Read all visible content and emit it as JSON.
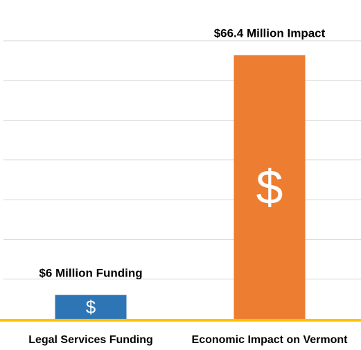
{
  "chart_data": {
    "type": "bar",
    "categories": [
      "Legal Services Funding",
      "Economic Impact on Vermont"
    ],
    "values": [
      6,
      66.4
    ],
    "data_labels": [
      "$6 Million Funding",
      "$66.4 Million Impact"
    ],
    "bar_symbols": [
      "$",
      "$"
    ],
    "colors": [
      "#2e75b6",
      "#ed7d31"
    ],
    "baseline_color": "#ffc000",
    "gridline_color": "#d9d9d9",
    "ylim": [
      0,
      70
    ],
    "grid": true,
    "title": "",
    "xlabel": "",
    "ylabel": ""
  }
}
